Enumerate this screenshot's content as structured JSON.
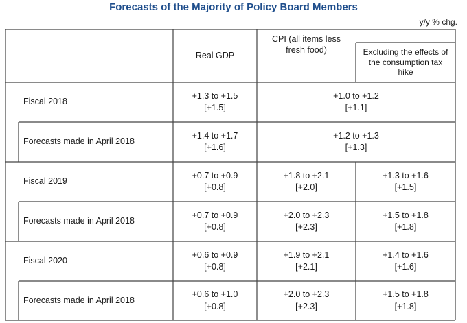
{
  "title": "Forecasts of the Majority of Policy Board Members",
  "unit": "y/y % chg.",
  "headers": {
    "real_gdp": "Real GDP",
    "cpi": "CPI (all items less fresh food)",
    "excluding": "Excluding the effects of the consumption tax hike"
  },
  "rows": [
    {
      "label": "Fiscal 2018",
      "gdp_range": "+1.3 to +1.5",
      "gdp_median": "[+1.5]",
      "cpi_range": "+1.0 to +1.2",
      "cpi_median": "[+1.1]"
    },
    {
      "label": "Forecasts made in April 2018",
      "gdp_range": "+1.4 to +1.7",
      "gdp_median": "[+1.6]",
      "cpi_range": "+1.2 to +1.3",
      "cpi_median": "[+1.3]"
    },
    {
      "label": "Fiscal 2019",
      "gdp_range": "+0.7 to +0.9",
      "gdp_median": "[+0.8]",
      "cpi_range": "+1.8 to +2.1",
      "cpi_median": "[+2.0]",
      "ex_range": "+1.3 to +1.6",
      "ex_median": "[+1.5]"
    },
    {
      "label": "Forecasts made in April 2018",
      "gdp_range": "+0.7 to +0.9",
      "gdp_median": "[+0.8]",
      "cpi_range": "+2.0 to +2.3",
      "cpi_median": "[+2.3]",
      "ex_range": "+1.5 to +1.8",
      "ex_median": "[+1.8]"
    },
    {
      "label": "Fiscal 2020",
      "gdp_range": "+0.6 to +0.9",
      "gdp_median": "[+0.8]",
      "cpi_range": "+1.9 to +2.1",
      "cpi_median": "[+2.1]",
      "ex_range": "+1.4 to +1.6",
      "ex_median": "[+1.6]"
    },
    {
      "label": "Forecasts made in April 2018",
      "gdp_range": "+0.6 to +1.0",
      "gdp_median": "[+0.8]",
      "cpi_range": "+2.0 to +2.3",
      "cpi_median": "[+2.3]",
      "ex_range": "+1.5 to +1.8",
      "ex_median": "[+1.8]"
    }
  ]
}
